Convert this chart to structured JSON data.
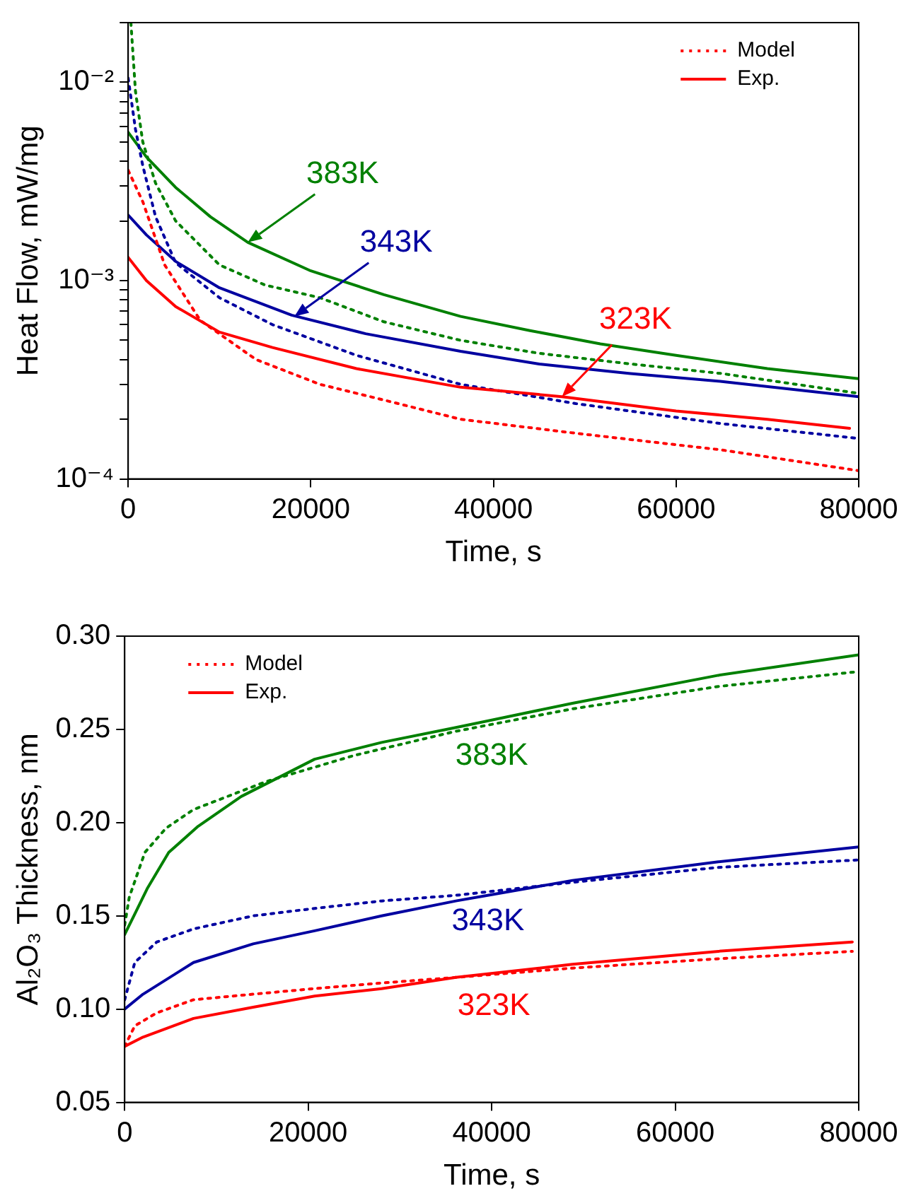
{
  "chart_data": [
    {
      "type": "line",
      "xlabel": "Time, s",
      "ylabel": "Heat Flow, mW/mg",
      "log": "y",
      "grid": false,
      "legend": "top right",
      "marker": "none",
      "xlim": [
        0,
        80000
      ],
      "xticks": [
        0,
        20000,
        40000,
        60000,
        80000
      ],
      "ylim": [
        0.0001,
        0.02
      ],
      "yticks": [
        {
          "value": 0.0001,
          "label": "10⁻⁴"
        },
        {
          "value": 0.0002,
          "label": null
        },
        {
          "value": 0.0003,
          "label": null
        },
        {
          "value": 0.0004,
          "label": null
        },
        {
          "value": 0.0005,
          "label": null
        },
        {
          "value": 0.0006,
          "label": null
        },
        {
          "value": 0.0007,
          "label": null
        },
        {
          "value": 0.0008,
          "label": null
        },
        {
          "value": 0.0009,
          "label": null
        },
        {
          "value": 0.001,
          "label": "10⁻³"
        },
        {
          "value": 0.002,
          "label": null
        },
        {
          "value": 0.003,
          "label": null
        },
        {
          "value": 0.004,
          "label": null
        },
        {
          "value": 0.005,
          "label": null
        },
        {
          "value": 0.006,
          "label": null
        },
        {
          "value": 0.007,
          "label": null
        },
        {
          "value": 0.008,
          "label": null
        },
        {
          "value": 0.009,
          "label": null
        },
        {
          "value": 0.01,
          "label": "10⁻²"
        },
        {
          "value": 0.02,
          "label": null
        }
      ],
      "series": [
        {
          "name": "Model",
          "color": "#ff0000",
          "line_style": "dotted",
          "x": [
            0,
            800,
            1600,
            4000,
            7900,
            14000,
            21000,
            28000,
            36400,
            49000,
            65000,
            80000
          ],
          "values": [
            0.0036,
            0.003,
            0.0025,
            0.0012,
            0.00063,
            0.0004,
            0.0003,
            0.00025,
            0.0002,
            0.00017,
            0.00014,
            0.00011
          ]
        },
        {
          "name": "Exp.",
          "color": "#ff0000",
          "line_style": "solid",
          "x": [
            0,
            2000,
            5200,
            10000,
            15800,
            25000,
            36400,
            47500,
            60000,
            70000,
            79000
          ],
          "values": [
            0.00131,
            0.001,
            0.00074,
            0.00055,
            0.00046,
            0.00036,
            0.00029,
            0.00026,
            0.00022,
            0.0002,
            0.00018
          ]
        },
        {
          "color": "#0000a0",
          "line_style": "dotted",
          "x": [
            0,
            800,
            1600,
            3000,
            5200,
            10000,
            15800,
            25000,
            36400,
            49000,
            65000,
            80000
          ],
          "values": [
            0.0105,
            0.0058,
            0.0038,
            0.0021,
            0.00123,
            0.00082,
            0.0006,
            0.00042,
            0.0003,
            0.00024,
            0.00019,
            0.00016
          ]
        },
        {
          "color": "#0000a0",
          "line_style": "solid",
          "x": [
            0,
            2000,
            5200,
            10000,
            17900,
            26000,
            36400,
            45000,
            55000,
            65000,
            80000
          ],
          "values": [
            0.00214,
            0.0017,
            0.00125,
            0.00092,
            0.00067,
            0.00054,
            0.00044,
            0.00038,
            0.00034,
            0.00031,
            0.00026
          ]
        },
        {
          "color": "#008000",
          "line_style": "dotted",
          "x": [
            300,
            800,
            1600,
            3000,
            5200,
            10000,
            15000,
            21000,
            28000,
            36400,
            45000,
            55000,
            65000,
            80000
          ],
          "values": [
            0.02,
            0.009,
            0.005,
            0.0031,
            0.002,
            0.0012,
            0.00095,
            0.00082,
            0.00062,
            0.0005,
            0.00043,
            0.00038,
            0.00034,
            0.00027
          ]
        },
        {
          "color": "#008000",
          "line_style": "solid",
          "x": [
            0,
            2000,
            5200,
            9000,
            13100,
            20000,
            28000,
            36400,
            44000,
            51700,
            60000,
            70000,
            80000
          ],
          "values": [
            0.0056,
            0.0042,
            0.00295,
            0.0021,
            0.00156,
            0.00112,
            0.00085,
            0.00066,
            0.00056,
            0.00048,
            0.00042,
            0.00036,
            0.00032
          ]
        }
      ],
      "annotations": [
        {
          "text": "383K",
          "x": 13100,
          "y": 0.00156
        },
        {
          "text": "343K",
          "x": 18200,
          "y": 0.00066
        },
        {
          "text": "323K",
          "x": 47500,
          "y": 0.00026
        }
      ]
    },
    {
      "type": "line",
      "xlabel": "Time, s",
      "ylabel": "Al₂O₃ Thickness, nm",
      "grid": false,
      "legend": "top left",
      "marker": "none",
      "xlim": [
        0,
        80000
      ],
      "xticks": [
        0,
        20000,
        40000,
        60000,
        80000
      ],
      "ylim": [
        0.05,
        0.3
      ],
      "yticks": [
        {
          "value": 0.05,
          "label": "0.05"
        },
        {
          "value": 0.1,
          "label": "0.10"
        },
        {
          "value": 0.15,
          "label": "0.15"
        },
        {
          "value": 0.2,
          "label": "0.20"
        },
        {
          "value": 0.25,
          "label": "0.25"
        },
        {
          "value": 0.3,
          "label": "0.30"
        }
      ],
      "series": [
        {
          "name": "Model",
          "color": "#ff0000",
          "line_style": "dotted",
          "x": [
            0,
            1100,
            3500,
            7500,
            14000,
            20700,
            28000,
            36100,
            48800,
            64700,
            79300
          ],
          "values": [
            0.08,
            0.091,
            0.098,
            0.105,
            0.108,
            0.111,
            0.114,
            0.117,
            0.122,
            0.127,
            0.131
          ]
        },
        {
          "name": "Exp.",
          "color": "#ff0000",
          "line_style": "solid",
          "x": [
            0,
            2000,
            7500,
            14000,
            20700,
            28000,
            36100,
            48800,
            64700,
            79300
          ],
          "values": [
            0.08,
            0.085,
            0.095,
            0.101,
            0.107,
            0.111,
            0.117,
            0.124,
            0.131,
            0.136
          ]
        },
        {
          "color": "#0000a0",
          "line_style": "dotted",
          "x": [
            0,
            1100,
            3500,
            7500,
            14000,
            20700,
            28000,
            36100,
            48800,
            64700,
            80000
          ],
          "values": [
            0.105,
            0.125,
            0.136,
            0.143,
            0.15,
            0.154,
            0.158,
            0.161,
            0.168,
            0.176,
            0.18
          ]
        },
        {
          "color": "#0000a0",
          "line_style": "solid",
          "x": [
            0,
            2000,
            7500,
            14000,
            20700,
            28000,
            36100,
            48800,
            64700,
            80000
          ],
          "values": [
            0.1,
            0.108,
            0.125,
            0.135,
            0.142,
            0.15,
            0.158,
            0.169,
            0.179,
            0.187
          ]
        },
        {
          "color": "#008000",
          "line_style": "dotted",
          "x": [
            0,
            500,
            2200,
            4500,
            7500,
            15400,
            25000,
            36100,
            48800,
            64700,
            80000
          ],
          "values": [
            0.145,
            0.16,
            0.184,
            0.197,
            0.207,
            0.222,
            0.236,
            0.249,
            0.261,
            0.273,
            0.281
          ]
        },
        {
          "color": "#008000",
          "line_style": "solid",
          "x": [
            0,
            1000,
            2500,
            4800,
            8000,
            12700,
            20700,
            28000,
            36100,
            48800,
            64700,
            80000
          ],
          "values": [
            0.14,
            0.15,
            0.165,
            0.184,
            0.198,
            0.214,
            0.234,
            0.243,
            0.251,
            0.264,
            0.279,
            0.29
          ]
        }
      ],
      "annotations": [
        "383K",
        "343K",
        "323K"
      ]
    }
  ]
}
